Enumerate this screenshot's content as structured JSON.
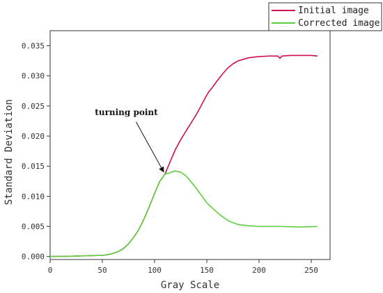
{
  "chart_data": {
    "type": "line",
    "title": "",
    "xlabel": "Gray Scale",
    "ylabel": "Standard Deviation",
    "xlim": [
      0,
      268
    ],
    "ylim": [
      -0.0005,
      0.0375
    ],
    "xticks": [
      0,
      50,
      100,
      150,
      200,
      250
    ],
    "xtick_labels": [
      "0",
      "50",
      "100",
      "150",
      "200",
      "250"
    ],
    "yticks": [
      0.0,
      0.005,
      0.01,
      0.015,
      0.02,
      0.025,
      0.03,
      0.035
    ],
    "ytick_labels": [
      "0.000",
      "0.005",
      "0.010",
      "0.015",
      "0.020",
      "0.025",
      "0.030",
      "0.035"
    ],
    "grid": false,
    "legend_position": "top-right",
    "series": [
      {
        "name": "Initial image",
        "color": "#d0104c",
        "points": [
          [
            0,
            0.0
          ],
          [
            10,
            2e-05
          ],
          [
            20,
            5e-05
          ],
          [
            30,
            0.0001
          ],
          [
            40,
            0.00015
          ],
          [
            50,
            0.0002
          ],
          [
            55,
            0.0003
          ],
          [
            60,
            0.0005
          ],
          [
            65,
            0.0008
          ],
          [
            70,
            0.0013
          ],
          [
            75,
            0.0021
          ],
          [
            80,
            0.0032
          ],
          [
            85,
            0.0045
          ],
          [
            90,
            0.0063
          ],
          [
            95,
            0.0083
          ],
          [
            100,
            0.0105
          ],
          [
            105,
            0.0125
          ],
          [
            110,
            0.0137
          ],
          [
            115,
            0.0158
          ],
          [
            120,
            0.0178
          ],
          [
            125,
            0.0194
          ],
          [
            130,
            0.0208
          ],
          [
            135,
            0.0222
          ],
          [
            140,
            0.0236
          ],
          [
            145,
            0.0252
          ],
          [
            148,
            0.0262
          ],
          [
            152,
            0.0274
          ],
          [
            155,
            0.028
          ],
          [
            160,
            0.0292
          ],
          [
            165,
            0.0303
          ],
          [
            170,
            0.0313
          ],
          [
            175,
            0.032
          ],
          [
            180,
            0.0325
          ],
          [
            190,
            0.033
          ],
          [
            200,
            0.0332
          ],
          [
            210,
            0.0333
          ],
          [
            218,
            0.0333
          ],
          [
            220,
            0.0329
          ],
          [
            222,
            0.0333
          ],
          [
            230,
            0.0334
          ],
          [
            240,
            0.0334
          ],
          [
            250,
            0.0334
          ],
          [
            256,
            0.0333
          ]
        ]
      },
      {
        "name": "Corrected image",
        "color": "#5bd03c",
        "points": [
          [
            0,
            0.0
          ],
          [
            10,
            2e-05
          ],
          [
            20,
            5e-05
          ],
          [
            30,
            0.0001
          ],
          [
            40,
            0.00015
          ],
          [
            50,
            0.0002
          ],
          [
            55,
            0.0003
          ],
          [
            60,
            0.0005
          ],
          [
            65,
            0.0008
          ],
          [
            70,
            0.0013
          ],
          [
            75,
            0.0021
          ],
          [
            80,
            0.0032
          ],
          [
            85,
            0.0045
          ],
          [
            90,
            0.0063
          ],
          [
            95,
            0.0083
          ],
          [
            100,
            0.0105
          ],
          [
            105,
            0.0125
          ],
          [
            110,
            0.0137
          ],
          [
            113,
            0.0138
          ],
          [
            116,
            0.014
          ],
          [
            120,
            0.0142
          ],
          [
            125,
            0.014
          ],
          [
            130,
            0.0134
          ],
          [
            135,
            0.0124
          ],
          [
            140,
            0.0113
          ],
          [
            145,
            0.0101
          ],
          [
            150,
            0.0089
          ],
          [
            155,
            0.0081
          ],
          [
            160,
            0.0073
          ],
          [
            165,
            0.0066
          ],
          [
            170,
            0.006
          ],
          [
            175,
            0.0056
          ],
          [
            180,
            0.0053
          ],
          [
            190,
            0.0051
          ],
          [
            200,
            0.005
          ],
          [
            220,
            0.005
          ],
          [
            240,
            0.0049
          ],
          [
            256,
            0.005
          ]
        ]
      }
    ],
    "annotations": [
      {
        "text": "turning point",
        "target": [
          110,
          0.0137
        ],
        "text_at": [
          73,
          0.0235
        ]
      }
    ]
  }
}
